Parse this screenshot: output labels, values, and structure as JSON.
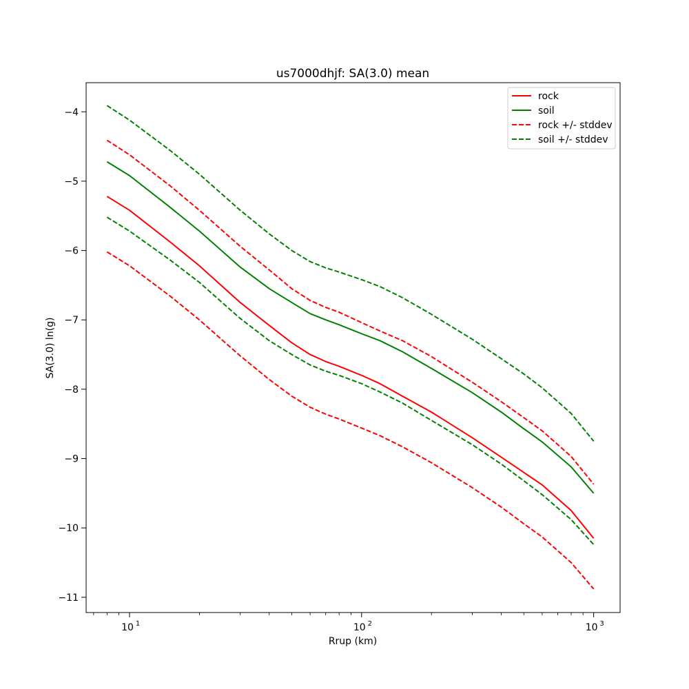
{
  "chart_data": {
    "type": "line",
    "title": "us7000dhjf: SA(3.0) mean",
    "xlabel": "Rrup (km)",
    "ylabel": "SA(3.0) ln(g)",
    "xscale": "log",
    "xlim": [
      6.5,
      1300
    ],
    "ylim": [
      -11.22,
      -3.58
    ],
    "xticks": [
      {
        "value": 10,
        "label": "10",
        "exp": "1"
      },
      {
        "value": 100,
        "label": "10",
        "exp": "2"
      },
      {
        "value": 1000,
        "label": "10",
        "exp": "3"
      }
    ],
    "yticks": [
      -11,
      -10,
      -9,
      -8,
      -7,
      -6,
      -5,
      -4
    ],
    "ytick_labels": [
      "−11",
      "−10",
      "−9",
      "−8",
      "−7",
      "−6",
      "−5",
      "−4"
    ],
    "legend_position": "upper right",
    "grid": false,
    "x": [
      8,
      10,
      15,
      20,
      30,
      40,
      50,
      60,
      70,
      80,
      100,
      120,
      150,
      200,
      300,
      400,
      500,
      600,
      800,
      1000
    ],
    "series": [
      {
        "name": "rock",
        "color": "#ff0000",
        "dash": "solid",
        "values": [
          -5.22,
          -5.42,
          -5.88,
          -6.22,
          -6.75,
          -7.08,
          -7.33,
          -7.5,
          -7.6,
          -7.67,
          -7.8,
          -7.92,
          -8.1,
          -8.33,
          -8.7,
          -8.98,
          -9.2,
          -9.38,
          -9.75,
          -10.15
        ]
      },
      {
        "name": "soil",
        "color": "#008000",
        "dash": "solid",
        "values": [
          -4.72,
          -4.92,
          -5.38,
          -5.72,
          -6.24,
          -6.55,
          -6.75,
          -6.91,
          -7.0,
          -7.07,
          -7.2,
          -7.3,
          -7.46,
          -7.7,
          -8.05,
          -8.33,
          -8.57,
          -8.76,
          -9.12,
          -9.5
        ]
      },
      {
        "name": "rock +/- stddev",
        "color": "#ff0000",
        "dash": "dashed",
        "values": [
          -4.41,
          -4.62,
          -5.07,
          -5.42,
          -5.94,
          -6.28,
          -6.55,
          -6.72,
          -6.82,
          -6.89,
          -7.04,
          -7.16,
          -7.3,
          -7.53,
          -7.9,
          -8.18,
          -8.41,
          -8.6,
          -8.97,
          -9.37
        ]
      },
      {
        "name": "",
        "color": "#ff0000",
        "dash": "dashed",
        "values": [
          -6.02,
          -6.22,
          -6.66,
          -7.0,
          -7.52,
          -7.86,
          -8.1,
          -8.26,
          -8.36,
          -8.43,
          -8.56,
          -8.67,
          -8.83,
          -9.06,
          -9.42,
          -9.7,
          -9.94,
          -10.13,
          -10.5,
          -10.88
        ]
      },
      {
        "name": "soil +/- stddev",
        "color": "#008000",
        "dash": "dashed",
        "values": [
          -3.91,
          -4.12,
          -4.56,
          -4.9,
          -5.42,
          -5.76,
          -6.0,
          -6.16,
          -6.25,
          -6.31,
          -6.42,
          -6.52,
          -6.68,
          -6.92,
          -7.28,
          -7.56,
          -7.78,
          -7.98,
          -8.35,
          -8.75
        ]
      },
      {
        "name": "",
        "color": "#008000",
        "dash": "dashed",
        "values": [
          -5.52,
          -5.72,
          -6.14,
          -6.46,
          -6.98,
          -7.3,
          -7.5,
          -7.65,
          -7.74,
          -7.8,
          -7.92,
          -8.04,
          -8.2,
          -8.45,
          -8.8,
          -9.08,
          -9.32,
          -9.52,
          -9.88,
          -10.24
        ]
      }
    ]
  }
}
